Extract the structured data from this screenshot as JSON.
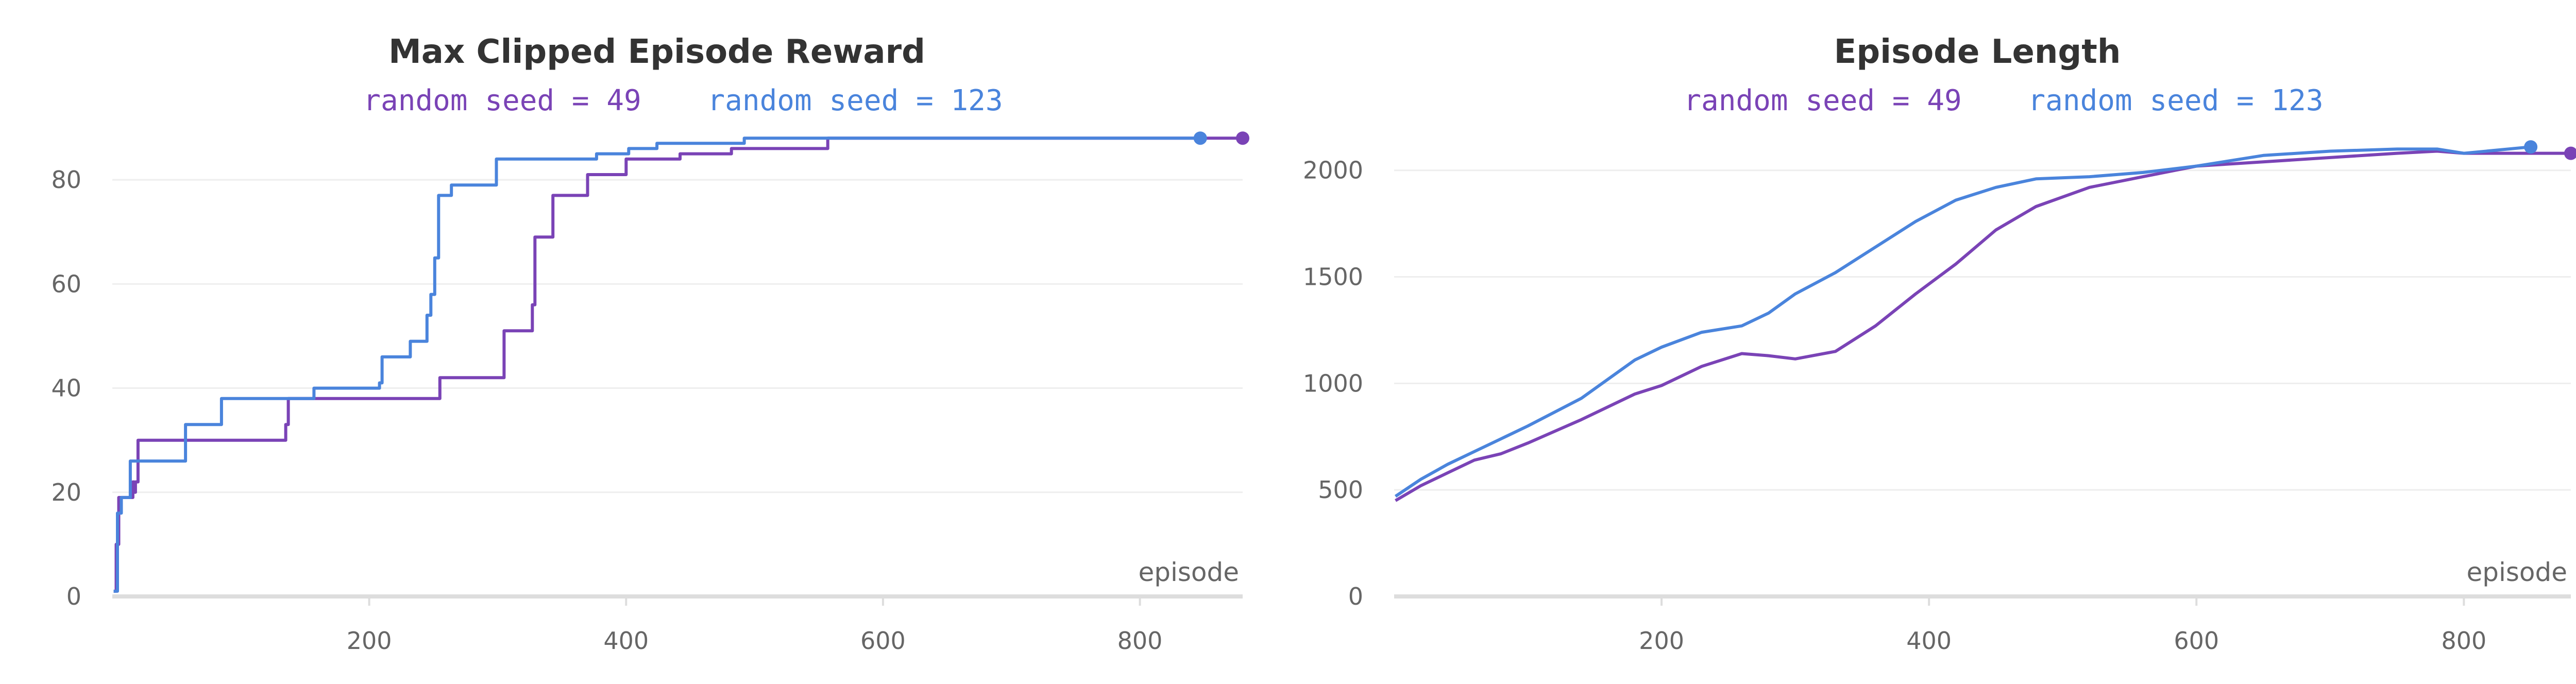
{
  "charts": [
    {
      "title": "Max Clipped Episode Reward",
      "xlabel": "episode",
      "legend": {
        "seed49": "random seed = 49",
        "seed123": "random seed = 123"
      },
      "x_ticks": [
        "200",
        "400",
        "600",
        "800"
      ],
      "y_ticks": [
        "0",
        "20",
        "40",
        "60",
        "80"
      ]
    },
    {
      "title": "Episode Length",
      "xlabel": "episode",
      "legend": {
        "seed49": "random seed = 49",
        "seed123": "random seed = 123"
      },
      "x_ticks": [
        "200",
        "400",
        "600",
        "800"
      ],
      "y_ticks": [
        "0",
        "500",
        "1000",
        "1500",
        "2000"
      ]
    }
  ],
  "colors": {
    "seed49": "#7a43b6",
    "seed123": "#4a84dc",
    "grid": "#eeeeee",
    "axis": "#dddddd"
  },
  "chart_data": [
    {
      "type": "line",
      "title": "Max Clipped Episode Reward",
      "xlabel": "episode",
      "ylabel": "",
      "xlim": [
        0,
        880
      ],
      "ylim": [
        0,
        90
      ],
      "x_ticks": [
        200,
        400,
        600,
        800
      ],
      "y_ticks": [
        0,
        20,
        40,
        60,
        80
      ],
      "grid": true,
      "legend_placement": "top",
      "step": true,
      "series": [
        {
          "name": "random seed = 49",
          "color": "#7a43b6",
          "points": [
            [
              1,
              1
            ],
            [
              3,
              10
            ],
            [
              5,
              19
            ],
            [
              15,
              19
            ],
            [
              16,
              22
            ],
            [
              17,
              20
            ],
            [
              18,
              22
            ],
            [
              20,
              30
            ],
            [
              133,
              30
            ],
            [
              135,
              33
            ],
            [
              137,
              38
            ],
            [
              253,
              38
            ],
            [
              255,
              42
            ],
            [
              303,
              42
            ],
            [
              305,
              51
            ],
            [
              325,
              51
            ],
            [
              327,
              56
            ],
            [
              329,
              69
            ],
            [
              333,
              69
            ],
            [
              343,
              77
            ],
            [
              368,
              77
            ],
            [
              370,
              81
            ],
            [
              398,
              81
            ],
            [
              400,
              84
            ],
            [
              440,
              84
            ],
            [
              442,
              85
            ],
            [
              480,
              85
            ],
            [
              482,
              86
            ],
            [
              555,
              86
            ],
            [
              557,
              88
            ],
            [
              880,
              88
            ]
          ]
        },
        {
          "name": "random seed = 123",
          "color": "#4a84dc",
          "points": [
            [
              1,
              1
            ],
            [
              4,
              16
            ],
            [
              7,
              19
            ],
            [
              12,
              19
            ],
            [
              14,
              26
            ],
            [
              55,
              26
            ],
            [
              57,
              33
            ],
            [
              83,
              33
            ],
            [
              85,
              38
            ],
            [
              155,
              38
            ],
            [
              157,
              40
            ],
            [
              205,
              40
            ],
            [
              208,
              41
            ],
            [
              210,
              46
            ],
            [
              230,
              46
            ],
            [
              232,
              49
            ],
            [
              242,
              49
            ],
            [
              245,
              54
            ],
            [
              248,
              58
            ],
            [
              251,
              65
            ],
            [
              254,
              77
            ],
            [
              262,
              77
            ],
            [
              264,
              79
            ],
            [
              297,
              79
            ],
            [
              299,
              84
            ],
            [
              375,
              84
            ],
            [
              377,
              85
            ],
            [
              400,
              85
            ],
            [
              402,
              86
            ],
            [
              422,
              86
            ],
            [
              424,
              87
            ],
            [
              490,
              87
            ],
            [
              492,
              88
            ],
            [
              847,
              88
            ]
          ]
        }
      ]
    },
    {
      "type": "line",
      "title": "Episode Length",
      "xlabel": "episode",
      "ylabel": "",
      "xlim": [
        0,
        880
      ],
      "ylim": [
        0,
        2200
      ],
      "x_ticks": [
        200,
        400,
        600,
        800
      ],
      "y_ticks": [
        0,
        500,
        1000,
        1500,
        2000
      ],
      "grid": true,
      "legend_placement": "top",
      "step": false,
      "series": [
        {
          "name": "random seed = 49",
          "color": "#7a43b6",
          "points": [
            [
              1,
              450
            ],
            [
              20,
              520
            ],
            [
              40,
              580
            ],
            [
              60,
              640
            ],
            [
              80,
              670
            ],
            [
              100,
              720
            ],
            [
              140,
              830
            ],
            [
              180,
              950
            ],
            [
              200,
              990
            ],
            [
              230,
              1080
            ],
            [
              260,
              1140
            ],
            [
              280,
              1130
            ],
            [
              300,
              1115
            ],
            [
              330,
              1150
            ],
            [
              360,
              1270
            ],
            [
              390,
              1420
            ],
            [
              420,
              1560
            ],
            [
              450,
              1720
            ],
            [
              480,
              1830
            ],
            [
              520,
              1920
            ],
            [
              560,
              1970
            ],
            [
              600,
              2020
            ],
            [
              650,
              2040
            ],
            [
              700,
              2060
            ],
            [
              750,
              2080
            ],
            [
              780,
              2090
            ],
            [
              800,
              2080
            ],
            [
              850,
              2080
            ],
            [
              880,
              2080
            ]
          ]
        },
        {
          "name": "random seed = 123",
          "color": "#4a84dc",
          "points": [
            [
              1,
              470
            ],
            [
              20,
              550
            ],
            [
              40,
              620
            ],
            [
              60,
              680
            ],
            [
              80,
              740
            ],
            [
              100,
              800
            ],
            [
              140,
              930
            ],
            [
              180,
              1110
            ],
            [
              200,
              1170
            ],
            [
              230,
              1240
            ],
            [
              260,
              1270
            ],
            [
              280,
              1330
            ],
            [
              300,
              1420
            ],
            [
              330,
              1520
            ],
            [
              360,
              1640
            ],
            [
              390,
              1760
            ],
            [
              420,
              1860
            ],
            [
              450,
              1920
            ],
            [
              480,
              1960
            ],
            [
              520,
              1970
            ],
            [
              560,
              1990
            ],
            [
              600,
              2020
            ],
            [
              650,
              2070
            ],
            [
              700,
              2090
            ],
            [
              750,
              2100
            ],
            [
              780,
              2100
            ],
            [
              800,
              2080
            ],
            [
              850,
              2110
            ]
          ]
        }
      ]
    }
  ]
}
